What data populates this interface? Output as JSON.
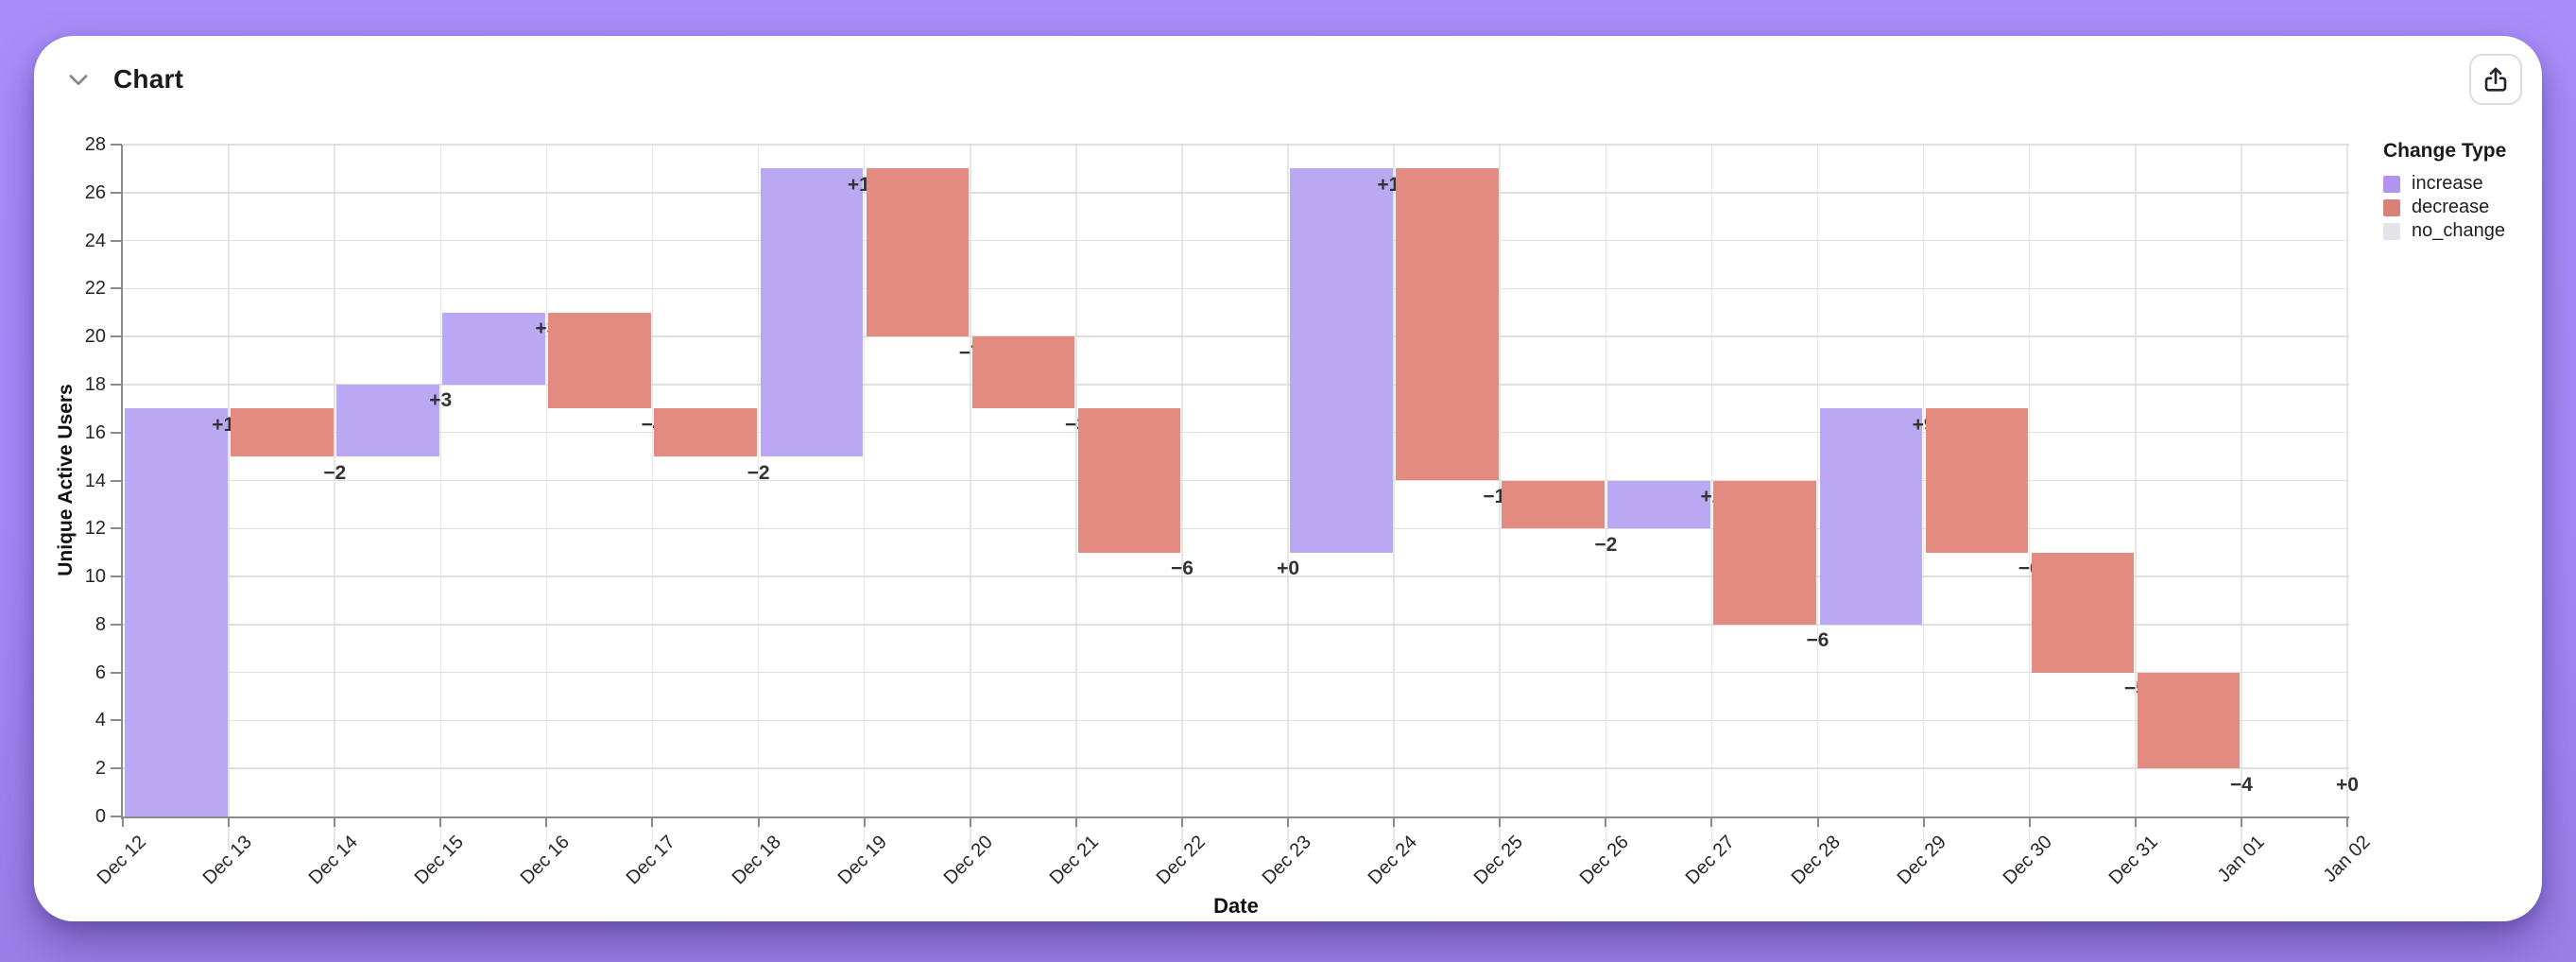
{
  "header": {
    "title": "Chart"
  },
  "chart_data": {
    "type": "bar",
    "subtype": "waterfall",
    "xlabel": "Date",
    "ylabel": "Unique Active Users",
    "ylim": [
      0,
      28
    ],
    "ytick_step": 2,
    "x_ticks": [
      "Dec 12",
      "Dec 13",
      "Dec 14",
      "Dec 15",
      "Dec 16",
      "Dec 17",
      "Dec 18",
      "Dec 19",
      "Dec 20",
      "Dec 21",
      "Dec 22",
      "Dec 23",
      "Dec 24",
      "Dec 25",
      "Dec 26",
      "Dec 27",
      "Dec 28",
      "Dec 29",
      "Dec 30",
      "Dec 31",
      "Jan 01",
      "Jan 02"
    ],
    "bars": [
      {
        "date": "Dec 12",
        "change": 17,
        "label": "+17",
        "start": 0,
        "end": 17,
        "type": "increase"
      },
      {
        "date": "Dec 13",
        "change": -2,
        "label": "−2",
        "start": 17,
        "end": 15,
        "type": "decrease"
      },
      {
        "date": "Dec 14",
        "change": 3,
        "label": "+3",
        "start": 15,
        "end": 18,
        "type": "increase"
      },
      {
        "date": "Dec 15",
        "change": 3,
        "label": "+3",
        "start": 18,
        "end": 21,
        "type": "increase"
      },
      {
        "date": "Dec 16",
        "change": -4,
        "label": "−4",
        "start": 21,
        "end": 17,
        "type": "decrease"
      },
      {
        "date": "Dec 17",
        "change": -2,
        "label": "−2",
        "start": 17,
        "end": 15,
        "type": "decrease"
      },
      {
        "date": "Dec 18",
        "change": 12,
        "label": "+12",
        "start": 15,
        "end": 27,
        "type": "increase"
      },
      {
        "date": "Dec 19",
        "change": -7,
        "label": "−7",
        "start": 27,
        "end": 20,
        "type": "decrease"
      },
      {
        "date": "Dec 20",
        "change": -3,
        "label": "−3",
        "start": 20,
        "end": 17,
        "type": "decrease"
      },
      {
        "date": "Dec 21",
        "change": -6,
        "label": "−6",
        "start": 17,
        "end": 11,
        "type": "decrease"
      },
      {
        "date": "Dec 22",
        "change": 0,
        "label": "+0",
        "start": 11,
        "end": 11,
        "type": "no_change"
      },
      {
        "date": "Dec 23",
        "change": 16,
        "label": "+16",
        "start": 11,
        "end": 27,
        "type": "increase"
      },
      {
        "date": "Dec 24",
        "change": -13,
        "label": "−13",
        "start": 27,
        "end": 14,
        "type": "decrease"
      },
      {
        "date": "Dec 25",
        "change": -2,
        "label": "−2",
        "start": 14,
        "end": 12,
        "type": "decrease"
      },
      {
        "date": "Dec 26",
        "change": 2,
        "label": "+2",
        "start": 12,
        "end": 14,
        "type": "increase"
      },
      {
        "date": "Dec 27",
        "change": -6,
        "label": "−6",
        "start": 14,
        "end": 8,
        "type": "decrease"
      },
      {
        "date": "Dec 28",
        "change": 9,
        "label": "+9",
        "start": 8,
        "end": 17,
        "type": "increase"
      },
      {
        "date": "Dec 29",
        "change": -6,
        "label": "−6",
        "start": 17,
        "end": 11,
        "type": "decrease"
      },
      {
        "date": "Dec 30",
        "change": -5,
        "label": "−5",
        "start": 11,
        "end": 6,
        "type": "decrease"
      },
      {
        "date": "Dec 31",
        "change": -4,
        "label": "−4",
        "start": 6,
        "end": 2,
        "type": "decrease"
      },
      {
        "date": "Jan 01",
        "change": 0,
        "label": "+0",
        "start": 2,
        "end": 2,
        "type": "no_change"
      }
    ],
    "bar_colors": {
      "increase": "#bba8f2",
      "decrease": "#e38b81",
      "no_change": "#e4e3e7"
    },
    "legend": {
      "title": "Change Type",
      "items": [
        {
          "label": "increase",
          "color": "#b193f0"
        },
        {
          "label": "decrease",
          "color": "#d98077"
        },
        {
          "label": "no_change",
          "color": "#e4e3e7"
        }
      ]
    }
  }
}
